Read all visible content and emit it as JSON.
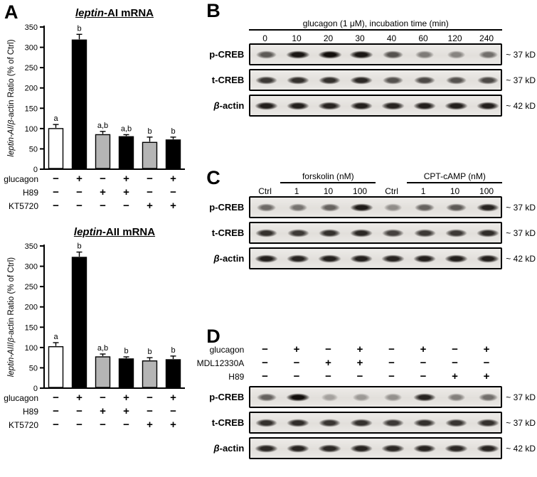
{
  "panels": {
    "a": {
      "label": "A"
    },
    "b": {
      "label": "B",
      "header": "glucagon (1 μM), incubation time (min)",
      "lane_labels": [
        "0",
        "10",
        "20",
        "30",
        "40",
        "60",
        "120",
        "240"
      ],
      "rows": [
        {
          "name": "p-CREB",
          "marker": "~ 37 kD",
          "intensities": [
            0.55,
            0.95,
            1.0,
            0.95,
            0.6,
            0.35,
            0.3,
            0.42
          ]
        },
        {
          "name": "t-CREB",
          "marker": "~ 37 kD",
          "intensities": [
            0.75,
            0.8,
            0.8,
            0.85,
            0.6,
            0.65,
            0.6,
            0.65
          ]
        },
        {
          "name": "β-actin",
          "marker": "~ 42 kD",
          "intensities": [
            0.9,
            0.9,
            0.88,
            0.9,
            0.88,
            0.9,
            0.9,
            0.9
          ]
        }
      ]
    },
    "c": {
      "label": "C",
      "groups": [
        {
          "name": "forskolin (nM)"
        },
        {
          "name": "CPT-cAMP (nM)"
        }
      ],
      "lane_labels": [
        "Ctrl",
        "1",
        "10",
        "100",
        "Ctrl",
        "1",
        "10",
        "100"
      ],
      "rows": [
        {
          "name": "p-CREB",
          "marker": "~ 37 kD",
          "intensities": [
            0.45,
            0.4,
            0.5,
            0.92,
            0.25,
            0.5,
            0.55,
            0.88
          ]
        },
        {
          "name": "t-CREB",
          "marker": "~ 37 kD",
          "intensities": [
            0.8,
            0.75,
            0.8,
            0.85,
            0.7,
            0.75,
            0.75,
            0.82
          ]
        },
        {
          "name": "β-actin",
          "marker": "~ 42 kD",
          "intensities": [
            0.9,
            0.88,
            0.9,
            0.9,
            0.88,
            0.9,
            0.9,
            0.9
          ]
        }
      ]
    },
    "d": {
      "label": "D",
      "treatments": [
        {
          "name": "glucagon",
          "signs": [
            "−",
            "+",
            "−",
            "+",
            "−",
            "+",
            "−",
            "+"
          ]
        },
        {
          "name": "MDL12330A",
          "signs": [
            "−",
            "−",
            "+",
            "+",
            "−",
            "−",
            "−",
            "−"
          ]
        },
        {
          "name": "H89",
          "signs": [
            "−",
            "−",
            "−",
            "−",
            "−",
            "−",
            "+",
            "+"
          ]
        }
      ],
      "rows": [
        {
          "name": "p-CREB",
          "marker": "~ 37 kD",
          "intensities": [
            0.5,
            1.0,
            0.12,
            0.18,
            0.22,
            0.88,
            0.32,
            0.42
          ]
        },
        {
          "name": "t-CREB",
          "marker": "~ 37 kD",
          "intensities": [
            0.8,
            0.82,
            0.78,
            0.8,
            0.75,
            0.8,
            0.78,
            0.8
          ]
        },
        {
          "name": "β-actin",
          "marker": "~ 42 kD",
          "intensities": [
            0.85,
            0.88,
            0.85,
            0.88,
            0.85,
            0.88,
            0.85,
            0.88
          ]
        }
      ]
    }
  },
  "chart_data": [
    {
      "type": "bar",
      "title": "leptin-AI mRNA",
      "title_parts": {
        "italic": "leptin",
        "rest": "-AI mRNA"
      },
      "ylabel": "leptin-AI/β-actin Ratio (% of Ctrl)",
      "ylabel_parts": {
        "it1": "leptin-AI",
        "mid": "/",
        "it2": "β",
        "rest": "-actin Ratio (% of Ctrl)"
      },
      "ylim": [
        0,
        350
      ],
      "yticks": [
        0,
        50,
        100,
        150,
        200,
        250,
        300,
        350
      ],
      "values": [
        100,
        318,
        85,
        80,
        66,
        72
      ],
      "errors": [
        10,
        14,
        8,
        5,
        13,
        7
      ],
      "sig_labels": [
        "a",
        "b",
        "a,b",
        "a,b",
        "b",
        "b"
      ],
      "bar_colors": [
        "#ffffff",
        "#000000",
        "#b5b5b5",
        "#000000",
        "#b5b5b5",
        "#000000"
      ],
      "treatments": [
        {
          "name": "glucagon",
          "signs": [
            "−",
            "+",
            "−",
            "+",
            "−",
            "+"
          ]
        },
        {
          "name": "H89",
          "signs": [
            "−",
            "−",
            "+",
            "+",
            "−",
            "−"
          ]
        },
        {
          "name": "KT5720",
          "signs": [
            "−",
            "−",
            "−",
            "−",
            "+",
            "+"
          ]
        }
      ]
    },
    {
      "type": "bar",
      "title": "leptin-AII mRNA",
      "title_parts": {
        "italic": "leptin",
        "rest": "-AII mRNA"
      },
      "ylabel": "leptin-AII/β-actin Ratio (% of Ctrl)",
      "ylabel_parts": {
        "it1": "leptin-AII",
        "mid": "/",
        "it2": "β",
        "rest": "-actin Ratio (% of Ctrl)"
      },
      "ylim": [
        0,
        350
      ],
      "yticks": [
        0,
        50,
        100,
        150,
        200,
        250,
        300,
        350
      ],
      "values": [
        102,
        322,
        77,
        72,
        67,
        70
      ],
      "errors": [
        10,
        13,
        7,
        5,
        8,
        9
      ],
      "sig_labels": [
        "a",
        "b",
        "a,b",
        "b",
        "b",
        "b"
      ],
      "bar_colors": [
        "#ffffff",
        "#000000",
        "#b5b5b5",
        "#000000",
        "#b5b5b5",
        "#000000"
      ],
      "treatments": [
        {
          "name": "glucagon",
          "signs": [
            "−",
            "+",
            "−",
            "+",
            "−",
            "+"
          ]
        },
        {
          "name": "H89",
          "signs": [
            "−",
            "−",
            "+",
            "+",
            "−",
            "−"
          ]
        },
        {
          "name": "KT5720",
          "signs": [
            "−",
            "−",
            "−",
            "−",
            "+",
            "+"
          ]
        }
      ]
    }
  ]
}
